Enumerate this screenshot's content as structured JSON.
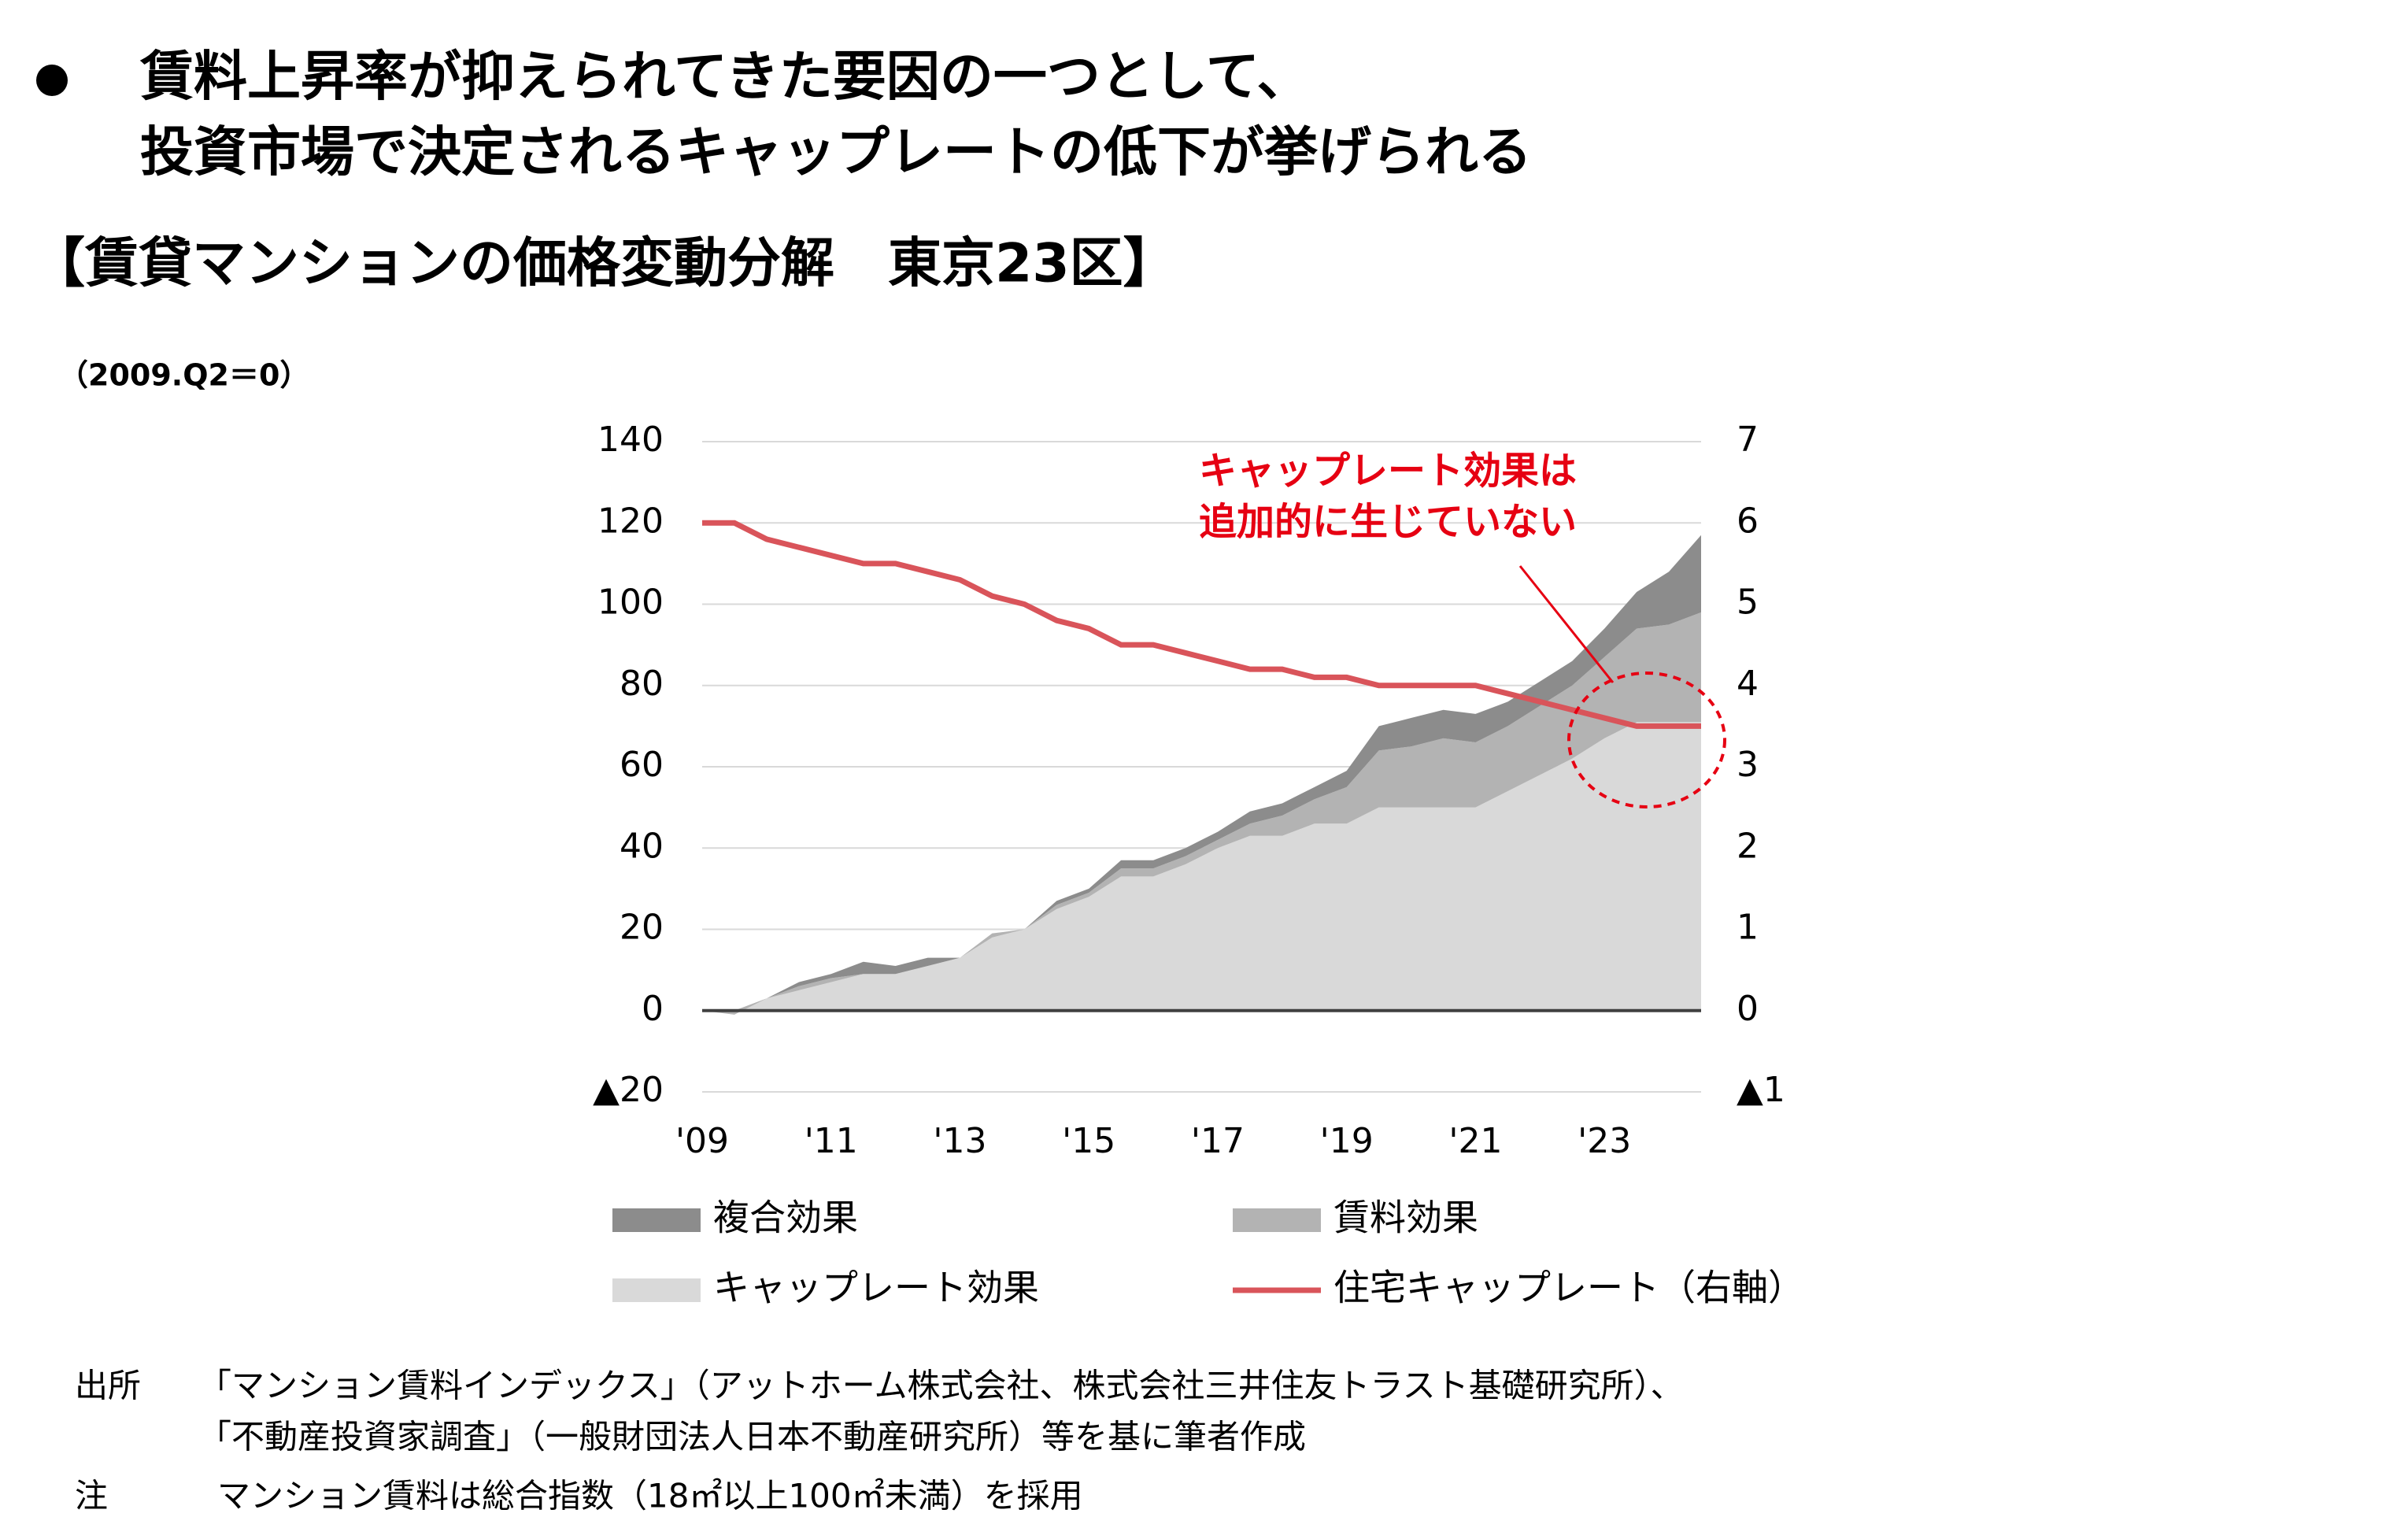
{
  "header": {
    "bullet_lines": [
      "賃料上昇率が抑えられてきた要因の一つとして、",
      "投資市場で決定されるキャップレートの低下が挙げられる"
    ]
  },
  "chart_data": {
    "type": "area",
    "stacked": true,
    "grid": true,
    "title": "【賃貸マンションの価格変動分解　東京23区】",
    "subtitle": "（2009.Q2＝0）",
    "annotation": {
      "lines": [
        "キャップレート効果は",
        "追加的に生じていない"
      ],
      "color": "#e60012"
    },
    "x": [
      2009,
      2009.5,
      2010,
      2010.5,
      2011,
      2011.5,
      2012,
      2012.5,
      2013,
      2013.5,
      2014,
      2014.5,
      2015,
      2015.5,
      2016,
      2016.5,
      2017,
      2017.5,
      2018,
      2018.5,
      2019,
      2019.5,
      2020,
      2020.5,
      2021,
      2021.5,
      2022,
      2022.5,
      2023,
      2023.5,
      2024,
      2024.5
    ],
    "xlim": [
      2009,
      2024.5
    ],
    "xticks": [
      {
        "value": 2009,
        "label": "'09"
      },
      {
        "value": 2011,
        "label": "'11"
      },
      {
        "value": 2013,
        "label": "'13"
      },
      {
        "value": 2015,
        "label": "'15"
      },
      {
        "value": 2017,
        "label": "'17"
      },
      {
        "value": 2019,
        "label": "'19"
      },
      {
        "value": 2021,
        "label": "'21"
      },
      {
        "value": 2023,
        "label": "'23"
      }
    ],
    "ylim": [
      -20,
      140
    ],
    "yticks": [
      {
        "value": -20,
        "label": "▲20"
      },
      0,
      20,
      40,
      60,
      80,
      100,
      120,
      140
    ],
    "y2lim": [
      -1,
      7
    ],
    "y2ticks": [
      {
        "value": -1,
        "label": "▲1"
      },
      0,
      1,
      2,
      3,
      4,
      5,
      6,
      7
    ],
    "series": [
      {
        "name": "複合効果",
        "color": "#8c8c8c",
        "values": [
          0,
          0,
          0,
          1,
          1,
          3,
          2,
          2,
          0,
          0,
          0,
          1,
          1,
          2,
          2,
          2,
          2,
          3,
          3,
          3,
          4,
          6,
          7,
          7,
          7,
          6,
          6,
          6,
          7,
          9,
          13,
          19
        ]
      },
      {
        "name": "賃料効果",
        "color": "#b3b3b3",
        "values": [
          0,
          -1,
          0,
          1,
          1,
          0,
          0,
          0,
          0,
          1,
          0,
          1,
          1,
          2,
          2,
          2,
          2,
          3,
          5,
          6,
          9,
          14,
          15,
          17,
          16,
          16,
          17,
          18,
          20,
          23,
          24,
          27
        ]
      },
      {
        "name": "キャップレート効果",
        "color": "#d9d9d9",
        "values": [
          0,
          0,
          3,
          5,
          7,
          9,
          9,
          11,
          13,
          18,
          20,
          25,
          28,
          33,
          33,
          36,
          40,
          43,
          43,
          46,
          46,
          50,
          50,
          50,
          50,
          54,
          58,
          62,
          67,
          71,
          71,
          71
        ]
      },
      {
        "name": "住宅キャップレート（右軸）",
        "color": "#d9545a",
        "type": "line",
        "axis": "y2",
        "values": [
          6.0,
          6.0,
          5.8,
          5.7,
          5.6,
          5.5,
          5.5,
          5.4,
          5.3,
          5.1,
          5.0,
          4.8,
          4.7,
          4.5,
          4.5,
          4.4,
          4.3,
          4.2,
          4.2,
          4.1,
          4.1,
          4.0,
          4.0,
          4.0,
          4.0,
          3.9,
          3.8,
          3.7,
          3.6,
          3.5,
          3.5,
          3.5
        ]
      }
    ]
  },
  "notes": [
    {
      "label": "出所",
      "lines": [
        "「マンション賃料インデックス」（アットホーム株式会社、株式会社三井住友トラスト基礎研究所）、",
        "「不動産投資家調査」（一般財団法人日本不動産研究所）等を基に筆者作成"
      ]
    },
    {
      "label": "注",
      "lines": [
        "マンション賃料は総合指数（18㎡以上100㎡未満）を採用"
      ]
    }
  ]
}
